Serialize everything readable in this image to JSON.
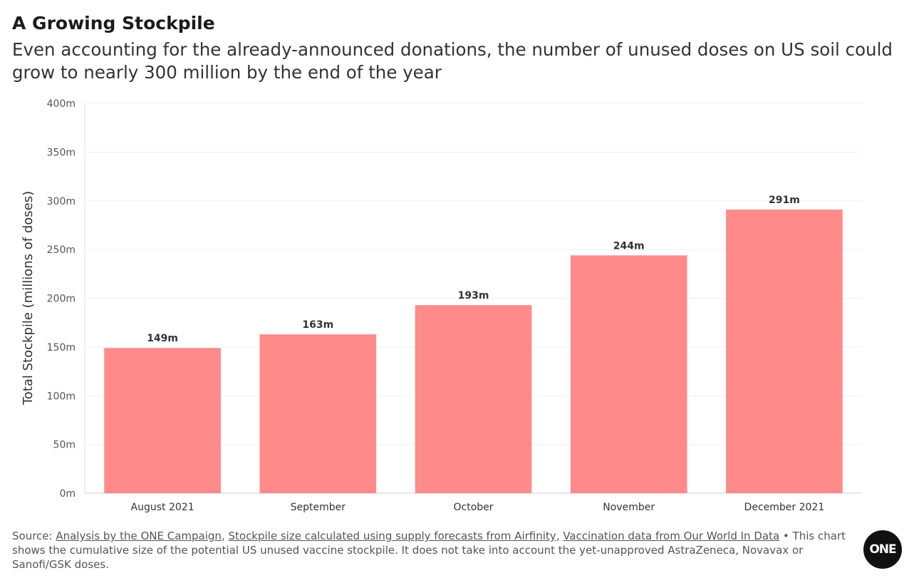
{
  "chart_data": {
    "type": "bar",
    "title": "A Growing Stockpile",
    "subtitle": "Even accounting for the already-announced donations, the number of unused doses on US soil could grow to nearly 300 million by the end of the year",
    "xlabel": "",
    "ylabel": "Total Stockpile (millions of doses)",
    "categories": [
      "August 2021",
      "September",
      "October",
      "November",
      "December 2021"
    ],
    "values": [
      149,
      163,
      193,
      244,
      291
    ],
    "data_labels": [
      "149m",
      "163m",
      "193m",
      "244m",
      "291m"
    ],
    "ylim": [
      0,
      400
    ],
    "yticks": [
      0,
      50,
      100,
      150,
      200,
      250,
      300,
      350,
      400
    ],
    "ytick_labels": [
      "0m",
      "50m",
      "100m",
      "150m",
      "200m",
      "250m",
      "300m",
      "350m",
      "400m"
    ],
    "grid": true,
    "bar_color": "#ff8a8a"
  },
  "footer": {
    "source_prefix": "Source: ",
    "links": [
      "Analysis by the ONE Campaign",
      "Stockpile size calculated using supply forecasts from Airfinity",
      "Vaccination data from Our World In Data"
    ],
    "separator": ", ",
    "bullet": " • ",
    "note": "This chart shows the cumulative size of the potential US unused vaccine stockpile. It does not take into account the yet-unapproved AstraZeneca, Novavax or Sanofi/GSK doses."
  },
  "logo": {
    "text": "ONE"
  }
}
